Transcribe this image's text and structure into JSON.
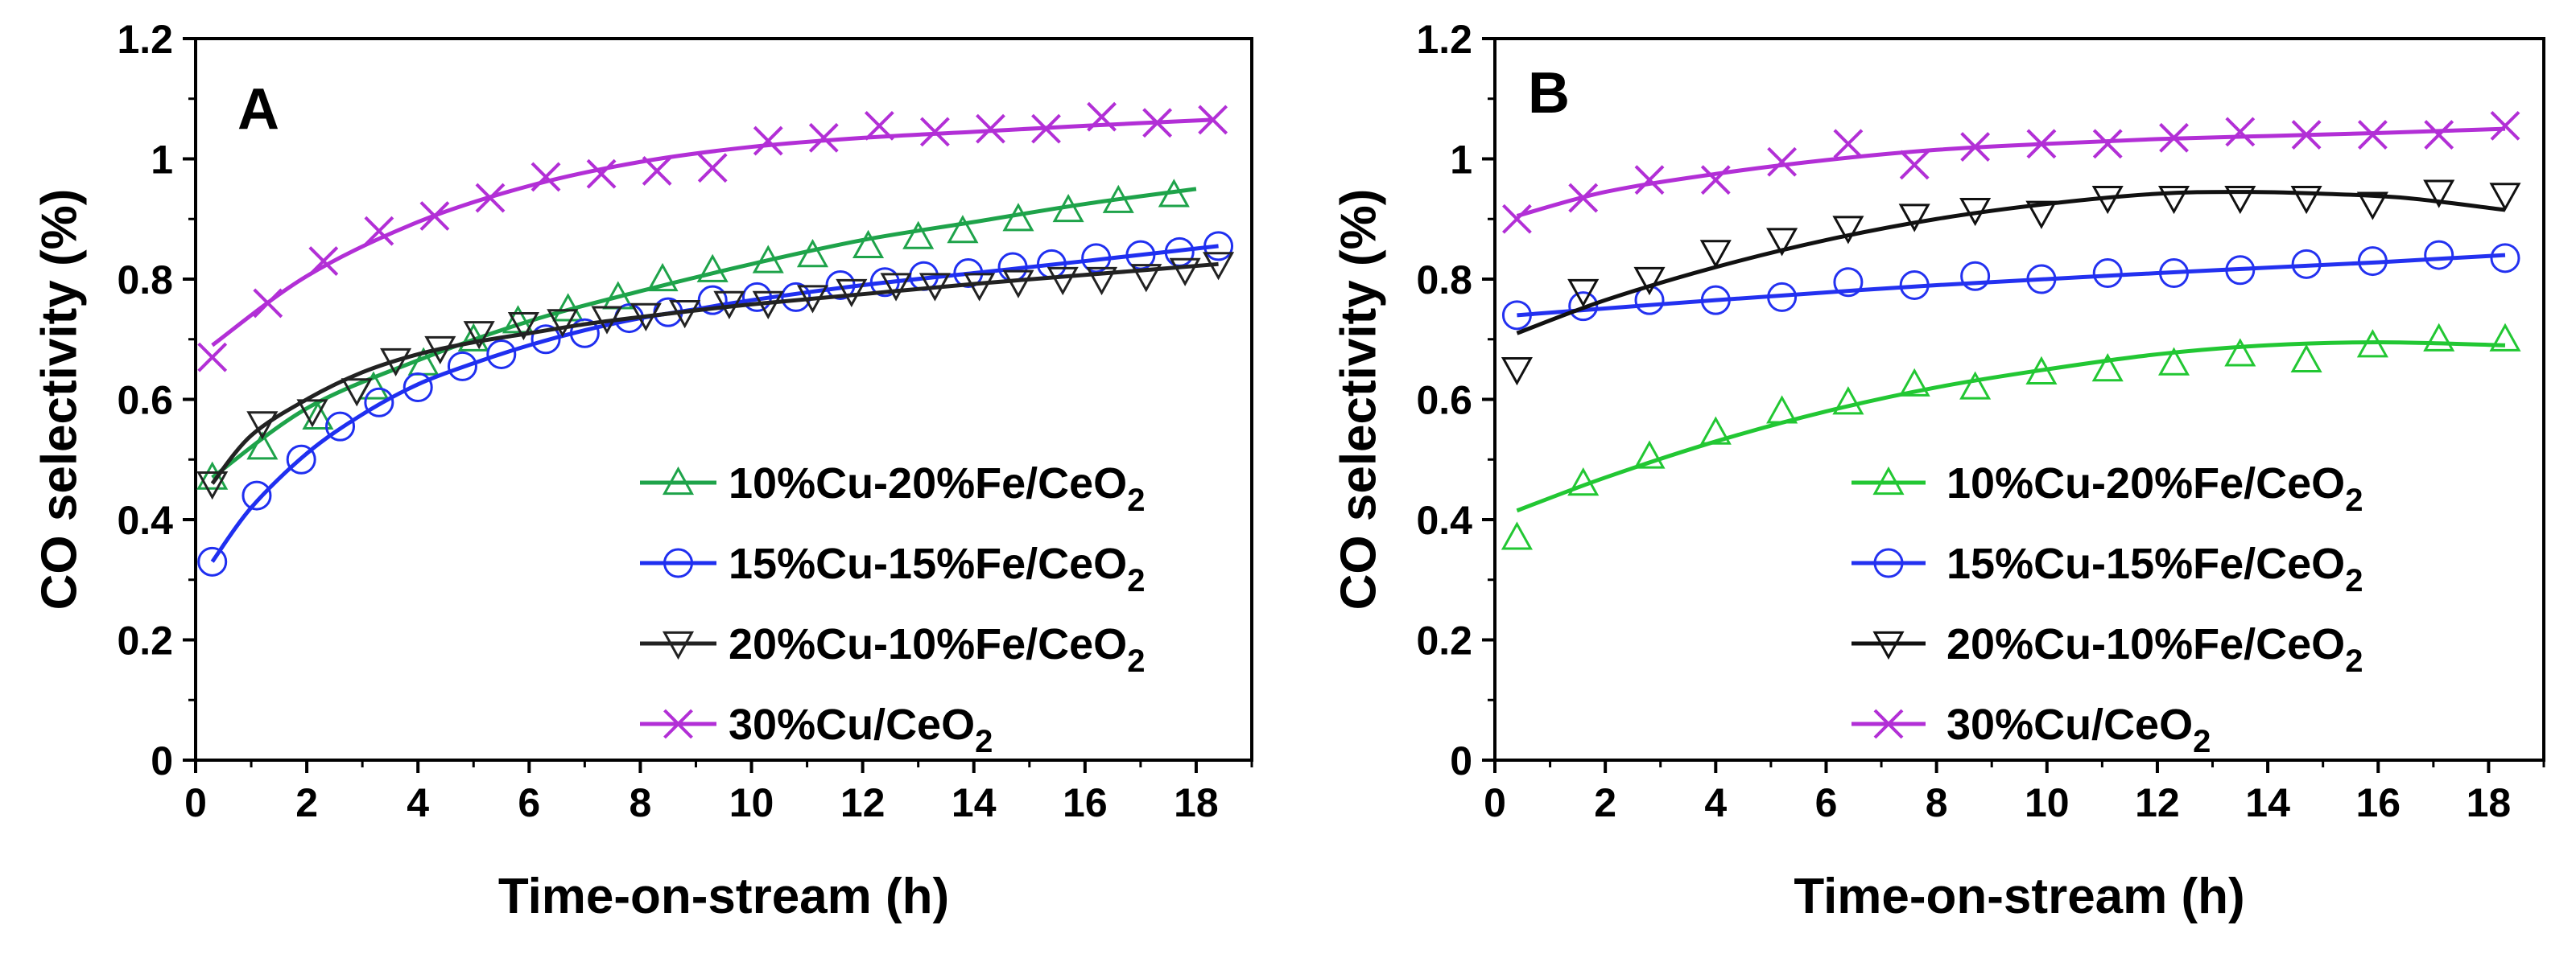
{
  "chart_data": [
    {
      "panel": "A",
      "type": "scatter",
      "title": "",
      "xlabel": "Time-on-stream (h)",
      "ylabel": "CO selectivity (%)",
      "xlim": [
        0,
        19
      ],
      "ylim": [
        0,
        1.2
      ],
      "xticks": [
        "0",
        "2",
        "4",
        "6",
        "8",
        "10",
        "12",
        "14",
        "16",
        "18"
      ],
      "yticks": [
        "0",
        "0.2",
        "0.4",
        "0.6",
        "0.8",
        "1",
        "1.2"
      ],
      "legend_position": "bottom-right",
      "series": [
        {
          "name": "10%Cu-20%Fe/CeO2",
          "label": "10%Cu-20%Fe/CeO",
          "label_sub": "2",
          "color": "#1ea34a",
          "marker": "triangle-up",
          "x": [
            0.3,
            1.2,
            2.2,
            3.2,
            4.1,
            5.0,
            5.8,
            6.7,
            7.6,
            8.4,
            9.3,
            10.3,
            11.1,
            12.1,
            13.0,
            13.8,
            14.8,
            15.7,
            16.6,
            17.6
          ],
          "y": [
            0.47,
            0.52,
            0.57,
            0.62,
            0.66,
            0.7,
            0.73,
            0.75,
            0.77,
            0.8,
            0.815,
            0.83,
            0.84,
            0.855,
            0.87,
            0.88,
            0.9,
            0.915,
            0.93,
            0.94
          ],
          "fit_x": [
            0.3,
            2,
            4,
            6,
            8,
            10,
            12,
            14,
            16,
            18
          ],
          "fit_y": [
            0.47,
            0.585,
            0.665,
            0.73,
            0.78,
            0.825,
            0.865,
            0.895,
            0.925,
            0.95
          ]
        },
        {
          "name": "15%Cu-15%Fe/CeO2",
          "label": "15%Cu-15%Fe/CeO",
          "label_sub": "2",
          "color": "#1f2ff0",
          "marker": "circle",
          "x": [
            0.3,
            1.1,
            1.9,
            2.6,
            3.3,
            4.0,
            4.8,
            5.5,
            6.3,
            7.0,
            7.8,
            8.5,
            9.3,
            10.1,
            10.8,
            11.6,
            12.4,
            13.1,
            13.9,
            14.7,
            15.4,
            16.2,
            17.0,
            17.7,
            18.4
          ],
          "y": [
            0.33,
            0.44,
            0.5,
            0.555,
            0.595,
            0.62,
            0.655,
            0.675,
            0.7,
            0.71,
            0.735,
            0.745,
            0.765,
            0.77,
            0.77,
            0.79,
            0.795,
            0.805,
            0.81,
            0.82,
            0.825,
            0.835,
            0.84,
            0.845,
            0.855
          ],
          "fit_x": [
            0.3,
            1,
            2,
            3,
            4,
            5,
            6,
            7,
            8,
            9,
            10,
            12,
            14,
            16,
            18.4
          ],
          "fit_y": [
            0.33,
            0.42,
            0.51,
            0.575,
            0.625,
            0.66,
            0.69,
            0.715,
            0.735,
            0.75,
            0.765,
            0.79,
            0.81,
            0.83,
            0.855
          ]
        },
        {
          "name": "20%Cu-10%Fe/CeO2",
          "label": "20%Cu-10%Fe/CeO",
          "label_sub": "2",
          "color": "#222222",
          "marker": "triangle-down",
          "x": [
            0.3,
            1.2,
            2.1,
            2.9,
            3.6,
            4.4,
            5.1,
            5.9,
            6.6,
            7.4,
            8.1,
            8.8,
            9.6,
            10.3,
            11.1,
            11.8,
            12.6,
            13.3,
            14.1,
            14.8,
            15.6,
            16.3,
            17.1,
            17.8,
            18.4
          ],
          "y": [
            0.46,
            0.56,
            0.58,
            0.615,
            0.665,
            0.685,
            0.71,
            0.725,
            0.73,
            0.735,
            0.74,
            0.745,
            0.76,
            0.76,
            0.77,
            0.78,
            0.79,
            0.79,
            0.79,
            0.795,
            0.8,
            0.8,
            0.805,
            0.815,
            0.825
          ],
          "fit_x": [
            0.3,
            1,
            2,
            3,
            4,
            5,
            6,
            7,
            8,
            9,
            10,
            12,
            14,
            16,
            18.4
          ],
          "fit_y": [
            0.46,
            0.54,
            0.6,
            0.645,
            0.675,
            0.695,
            0.71,
            0.725,
            0.737,
            0.748,
            0.758,
            0.775,
            0.792,
            0.807,
            0.825
          ]
        },
        {
          "name": "30%Cu/CeO2",
          "label": "30%Cu/CeO",
          "label_sub": "2",
          "color": "#b22fd6",
          "marker": "x",
          "x": [
            0.3,
            1.3,
            2.3,
            3.3,
            4.3,
            5.3,
            6.3,
            7.3,
            8.3,
            9.3,
            10.3,
            11.3,
            12.3,
            13.3,
            14.3,
            15.3,
            16.3,
            17.3,
            18.3
          ],
          "y": [
            0.67,
            0.76,
            0.83,
            0.88,
            0.905,
            0.935,
            0.97,
            0.975,
            0.98,
            0.985,
            1.03,
            1.035,
            1.055,
            1.045,
            1.05,
            1.05,
            1.07,
            1.06,
            1.065
          ],
          "fit_x": [
            0.3,
            2,
            4,
            6,
            8,
            10,
            12,
            14,
            16,
            18.3
          ],
          "fit_y": [
            0.69,
            0.805,
            0.895,
            0.955,
            0.995,
            1.02,
            1.035,
            1.045,
            1.055,
            1.065
          ]
        }
      ]
    },
    {
      "panel": "B",
      "type": "scatter",
      "title": "",
      "xlabel": "Time-on-stream (h)",
      "ylabel": "CO selectivity (%)",
      "xlim": [
        0,
        19
      ],
      "ylim": [
        0,
        1.2
      ],
      "xticks": [
        "0",
        "2",
        "4",
        "6",
        "8",
        "10",
        "12",
        "14",
        "16",
        "18"
      ],
      "yticks": [
        "0",
        "0.2",
        "0.4",
        "0.6",
        "0.8",
        "1",
        "1.2"
      ],
      "legend_position": "bottom-right",
      "series": [
        {
          "name": "10%Cu-20%Fe/CeO2",
          "label": "10%Cu-20%Fe/CeO",
          "label_sub": "2",
          "color": "#22c733",
          "marker": "triangle-up",
          "x": [
            0.4,
            1.6,
            2.8,
            4.0,
            5.2,
            6.4,
            7.6,
            8.7,
            9.9,
            11.1,
            12.3,
            13.5,
            14.7,
            15.9,
            17.1,
            18.3
          ],
          "y": [
            0.37,
            0.46,
            0.505,
            0.545,
            0.58,
            0.595,
            0.625,
            0.62,
            0.645,
            0.65,
            0.66,
            0.675,
            0.665,
            0.69,
            0.7,
            0.7
          ],
          "fit_x": [
            0.4,
            2,
            4,
            6,
            8,
            10,
            12,
            14,
            16,
            18.3
          ],
          "fit_y": [
            0.415,
            0.47,
            0.53,
            0.58,
            0.62,
            0.65,
            0.675,
            0.69,
            0.695,
            0.69
          ]
        },
        {
          "name": "15%Cu-15%Fe/CeO2",
          "label": "15%Cu-15%Fe/CeO",
          "label_sub": "2",
          "color": "#2331f0",
          "marker": "circle",
          "x": [
            0.4,
            1.6,
            2.8,
            4.0,
            5.2,
            6.4,
            7.6,
            8.7,
            9.9,
            11.1,
            12.3,
            13.5,
            14.7,
            15.9,
            17.1,
            18.3
          ],
          "y": [
            0.74,
            0.755,
            0.765,
            0.765,
            0.77,
            0.795,
            0.79,
            0.805,
            0.8,
            0.81,
            0.81,
            0.815,
            0.825,
            0.83,
            0.84,
            0.835
          ],
          "fit_x": [
            0.4,
            4,
            8,
            12,
            16,
            18.3
          ],
          "fit_y": [
            0.74,
            0.765,
            0.79,
            0.81,
            0.828,
            0.84
          ]
        },
        {
          "name": "20%Cu-10%Fe/CeO2",
          "label": "20%Cu-10%Fe/CeO",
          "label_sub": "2",
          "color": "#111111",
          "marker": "triangle-down",
          "x": [
            0.4,
            1.6,
            2.8,
            4.0,
            5.2,
            6.4,
            7.6,
            8.7,
            9.9,
            11.1,
            12.3,
            13.5,
            14.7,
            15.9,
            17.1,
            18.3
          ],
          "y": [
            0.65,
            0.78,
            0.8,
            0.845,
            0.865,
            0.885,
            0.905,
            0.915,
            0.91,
            0.935,
            0.935,
            0.935,
            0.935,
            0.925,
            0.945,
            0.94
          ],
          "fit_x": [
            0.4,
            2,
            4,
            6,
            8,
            10,
            12,
            13.5,
            15,
            16.5,
            18.3
          ],
          "fit_y": [
            0.71,
            0.765,
            0.82,
            0.865,
            0.9,
            0.925,
            0.942,
            0.945,
            0.942,
            0.935,
            0.915
          ]
        },
        {
          "name": "30%Cu/CeO2",
          "label": "30%Cu/CeO",
          "label_sub": "2",
          "color": "#b22fd6",
          "marker": "x",
          "x": [
            0.4,
            1.6,
            2.8,
            4.0,
            5.2,
            6.4,
            7.6,
            8.7,
            9.9,
            11.1,
            12.3,
            13.5,
            14.7,
            15.9,
            17.1,
            18.3
          ],
          "y": [
            0.9,
            0.935,
            0.965,
            0.965,
            0.995,
            1.025,
            0.99,
            1.02,
            1.025,
            1.025,
            1.035,
            1.045,
            1.04,
            1.04,
            1.04,
            1.055
          ],
          "fit_x": [
            0.4,
            2,
            4,
            6,
            8,
            10,
            12,
            14,
            16,
            18.3
          ],
          "fit_y": [
            0.905,
            0.945,
            0.975,
            0.998,
            1.015,
            1.025,
            1.033,
            1.038,
            1.043,
            1.05
          ]
        }
      ]
    }
  ]
}
